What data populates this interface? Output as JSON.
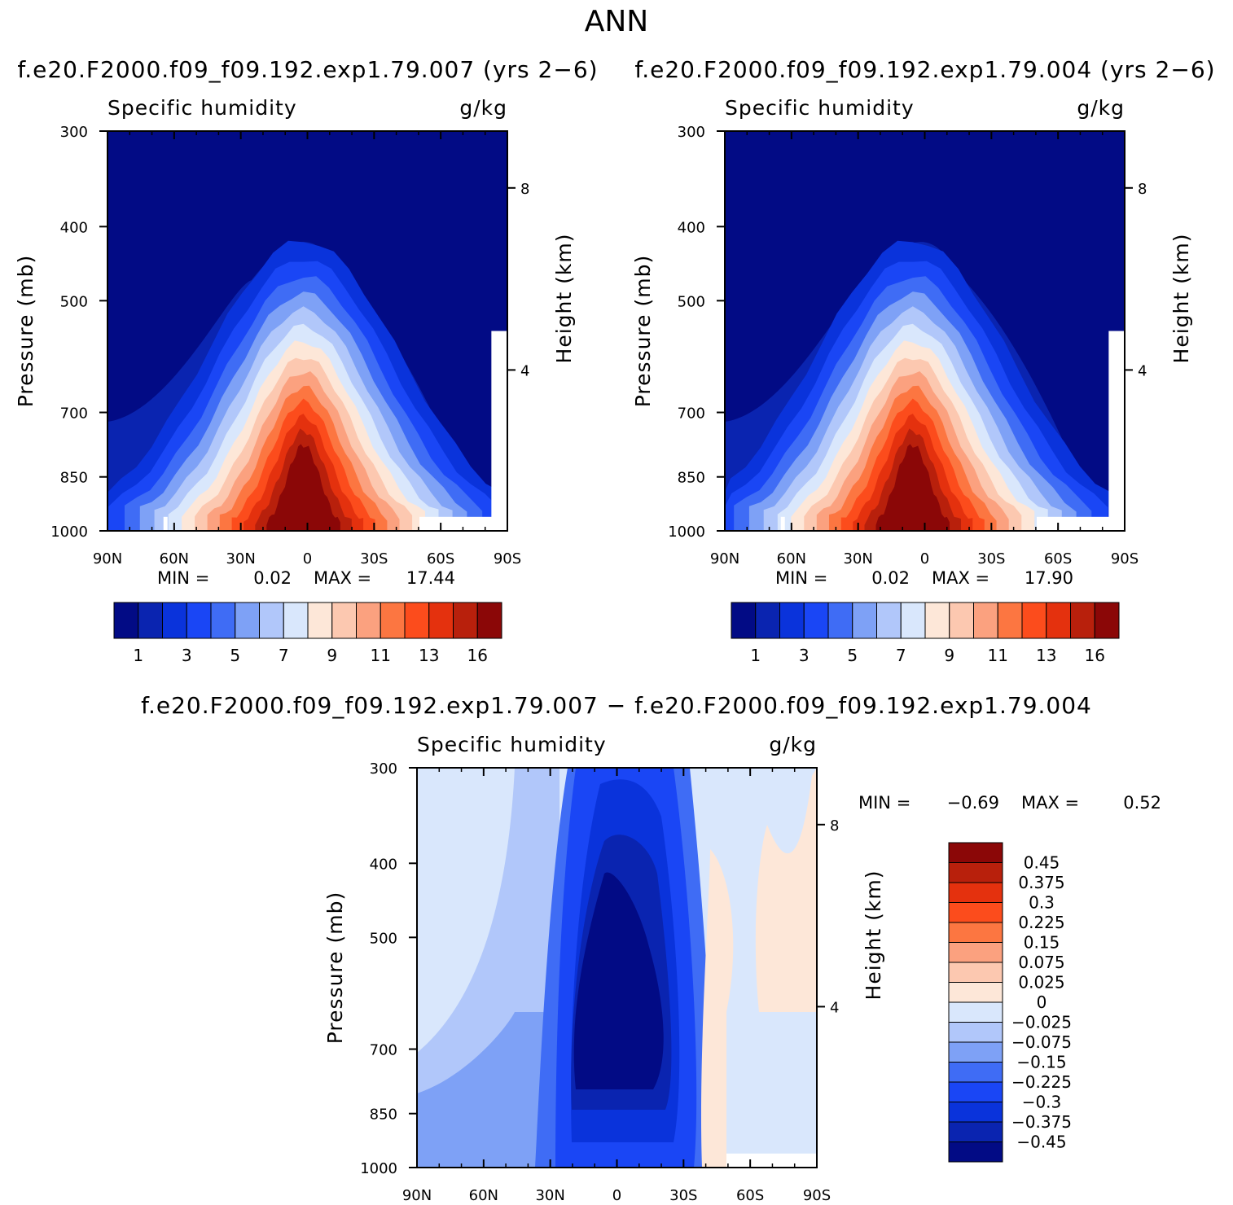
{
  "figure_title": "ANN",
  "panels": [
    {
      "id": "a",
      "title": "f.e20.F2000.f09_f09.192.exp1.79.007 (yrs 2−6)",
      "left_label": "Specific humidity",
      "right_label": "g/kg",
      "y_title": "Pressure (mb)",
      "y2_title": "Height (km)",
      "stats": {
        "min_label": "MIN =",
        "min_value": "0.02",
        "max_label": "MAX =",
        "max_value": "17.44"
      }
    },
    {
      "id": "b",
      "title": "f.e20.F2000.f09_f09.192.exp1.79.004 (yrs 2−6)",
      "left_label": "Specific humidity",
      "right_label": "g/kg",
      "y_title": "Pressure (mb)",
      "y2_title": "Height (km)",
      "stats": {
        "min_label": "MIN =",
        "min_value": "0.02",
        "max_label": "MAX =",
        "max_value": "17.90"
      }
    },
    {
      "id": "c",
      "title": "f.e20.F2000.f09_f09.192.exp1.79.007 − f.e20.F2000.f09_f09.192.exp1.79.004",
      "left_label": "Specific humidity",
      "right_label": "g/kg",
      "y_title": "Pressure (mb)",
      "y2_title": "Height (km)",
      "stats": {
        "min_label": "MIN =",
        "min_value": "−0.69",
        "max_label": "MAX =",
        "max_value": "0.52"
      }
    }
  ],
  "chart_data": [
    {
      "type": "heatmap",
      "panel": "a",
      "title": "f.e20.F2000.f09_f09.192.exp1.79.007 (yrs 2−6)",
      "x_ticks": [
        "90N",
        "60N",
        "30N",
        "0",
        "30S",
        "60S",
        "90S"
      ],
      "y_ticks": [
        "300",
        "400",
        "500",
        "700",
        "850",
        "1000"
      ],
      "y2_ticks": [
        "8",
        "4"
      ],
      "xlim": [
        90,
        -90
      ],
      "ylim_mb": [
        300,
        1000
      ],
      "surface_max_mb": 17.44,
      "colorbar_labels": [
        "1",
        "3",
        "5",
        "7",
        "9",
        "11",
        "13",
        "16"
      ],
      "colorbar_levels": [
        1,
        2,
        3,
        4,
        5,
        6,
        7,
        8,
        9,
        10,
        11,
        12,
        13,
        14,
        16
      ],
      "min": 0.02,
      "max": 17.44
    },
    {
      "type": "heatmap",
      "panel": "b",
      "title": "f.e20.F2000.f09_f09.192.exp1.79.004 (yrs 2−6)",
      "x_ticks": [
        "90N",
        "60N",
        "30N",
        "0",
        "30S",
        "60S",
        "90S"
      ],
      "y_ticks": [
        "300",
        "400",
        "500",
        "700",
        "850",
        "1000"
      ],
      "y2_ticks": [
        "8",
        "4"
      ],
      "xlim": [
        90,
        -90
      ],
      "ylim_mb": [
        300,
        1000
      ],
      "colorbar_labels": [
        "1",
        "3",
        "5",
        "7",
        "9",
        "11",
        "13",
        "16"
      ],
      "colorbar_levels": [
        1,
        2,
        3,
        4,
        5,
        6,
        7,
        8,
        9,
        10,
        11,
        12,
        13,
        14,
        16
      ],
      "min": 0.02,
      "max": 17.9
    },
    {
      "type": "heatmap",
      "panel": "c",
      "title": "f.e20.F2000.f09_f09.192.exp1.79.007 − f.e20.F2000.f09_f09.192.exp1.79.004",
      "x_ticks": [
        "90N",
        "60N",
        "30N",
        "0",
        "30S",
        "60S",
        "90S"
      ],
      "y_ticks": [
        "300",
        "400",
        "500",
        "700",
        "850",
        "1000"
      ],
      "y2_ticks": [
        "8",
        "4"
      ],
      "xlim": [
        90,
        -90
      ],
      "ylim_mb": [
        300,
        1000
      ],
      "colorbar_labels": [
        "0.45",
        "0.375",
        "0.3",
        "0.225",
        "0.15",
        "0.075",
        "0.025",
        "0",
        "−0.025",
        "−0.075",
        "−0.15",
        "−0.225",
        "−0.3",
        "−0.375",
        "−0.45"
      ],
      "colorbar_levels": [
        -0.45,
        -0.375,
        -0.3,
        -0.225,
        -0.15,
        -0.075,
        -0.025,
        0,
        0.025,
        0.075,
        0.15,
        0.225,
        0.3,
        0.375,
        0.45
      ],
      "min": -0.69,
      "max": 0.52
    }
  ],
  "colors": {
    "abs_palette": [
      "#020b85",
      "#0a24b0",
      "#0a33db",
      "#1a46f5",
      "#3f6cf5",
      "#7ea1f6",
      "#b1c7fa",
      "#d9e7fc",
      "#fde7d8",
      "#fcc8b0",
      "#fba17f",
      "#fc7641",
      "#fc4c1c",
      "#e4310e",
      "#b8200c",
      "#8b0707"
    ],
    "diff_palette_top_to_bottom": [
      "#8b0707",
      "#b8200c",
      "#e4310e",
      "#fc4c1c",
      "#fc7641",
      "#fba17f",
      "#fcc8b0",
      "#fde7d8",
      "#d9e7fc",
      "#b1c7fa",
      "#7ea1f6",
      "#3f6cf5",
      "#1a46f5",
      "#0a33db",
      "#0a24b0",
      "#020b85"
    ]
  }
}
